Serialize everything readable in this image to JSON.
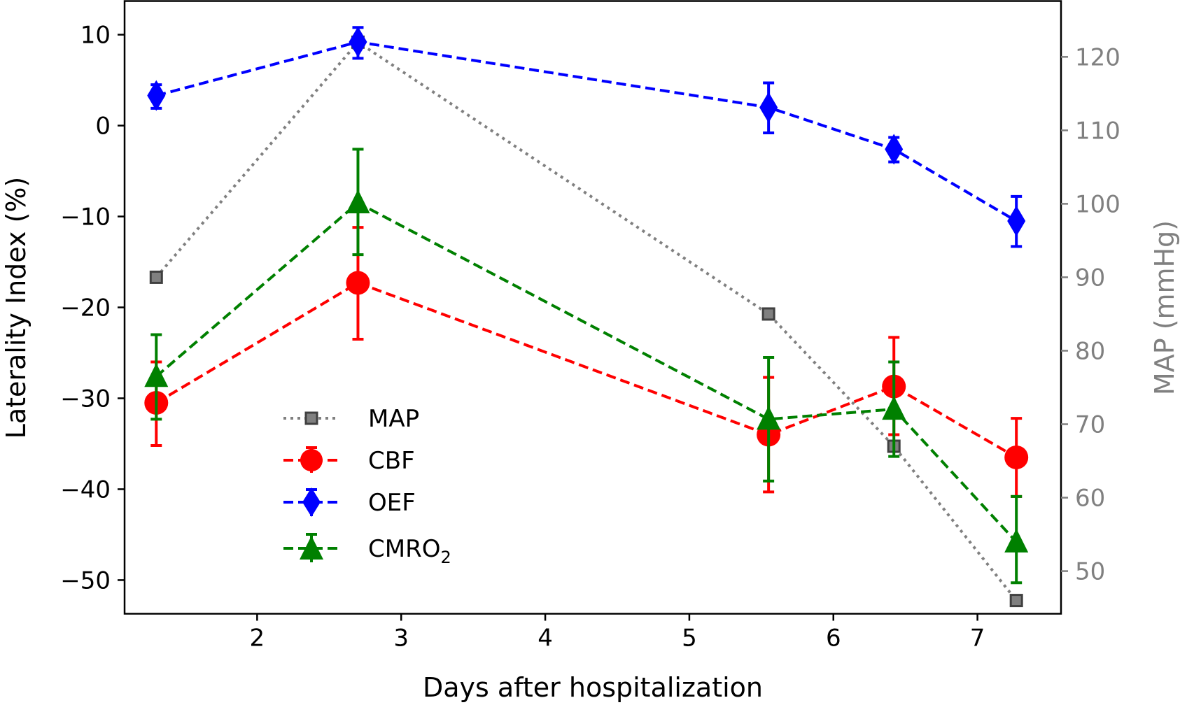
{
  "chart_data": {
    "type": "line",
    "xlabel": "Days after hospitalization",
    "ylabel_left": "Laterality Index (%)",
    "ylabel_right": "MAP (mmHg)",
    "xlim": [
      1.08,
      7.58
    ],
    "ylim_left": [
      -53.7,
      13.7
    ],
    "ylim_right": [
      44.2,
      127.6
    ],
    "x_ticks": [
      2,
      3,
      4,
      5,
      6,
      7
    ],
    "y_ticks_left": [
      10,
      0,
      -10,
      -20,
      -30,
      -40,
      -50
    ],
    "y_ticks_right": [
      120,
      110,
      100,
      90,
      80,
      70,
      60,
      50
    ],
    "x_tick_labels": [
      "2",
      "3",
      "4",
      "5",
      "6",
      "7"
    ],
    "y_tick_labels_left": [
      "10",
      "0",
      "−10",
      "−20",
      "−30",
      "−40",
      "−50"
    ],
    "y_tick_labels_right": [
      "120",
      "110",
      "100",
      "90",
      "80",
      "70",
      "60",
      "50"
    ],
    "grid": false,
    "legend_position": "lower-left",
    "series": [
      {
        "name": "MAP",
        "axis": "right",
        "color": "#808080",
        "line": "dotted",
        "marker": "square",
        "x": [
          1.3,
          2.7,
          5.55,
          6.42,
          7.27
        ],
        "y": [
          90,
          122,
          85,
          67,
          46
        ]
      },
      {
        "name": "CBF",
        "axis": "left",
        "color": "#ff0000",
        "line": "dashed",
        "marker": "circle",
        "x": [
          1.3,
          2.7,
          5.55,
          6.42,
          7.27
        ],
        "y": [
          -30.5,
          -17.3,
          -34,
          -28.7,
          -36.5
        ],
        "err_low": [
          -35.2,
          -23.5,
          -40.3,
          -34,
          -40.8
        ],
        "err_high": [
          -26,
          -11.2,
          -27.7,
          -23.3,
          -32.2
        ]
      },
      {
        "name": "OEF",
        "axis": "left",
        "color": "#0000ff",
        "line": "dashed",
        "marker": "diamond",
        "x": [
          1.3,
          2.7,
          5.55,
          6.42,
          7.27
        ],
        "y": [
          3.3,
          9.2,
          2,
          -2.6,
          -10.5
        ],
        "err_low": [
          1.9,
          7.4,
          -0.8,
          -4,
          -13.3
        ],
        "err_high": [
          4.5,
          10.8,
          4.7,
          -1.3,
          -7.8
        ]
      },
      {
        "name": "CMRO",
        "name_sub": "2",
        "axis": "left",
        "color": "#008000",
        "line": "dashed",
        "marker": "triangle",
        "x": [
          1.3,
          2.7,
          5.55,
          6.42,
          7.27
        ],
        "y": [
          -27.6,
          -8.5,
          -32.3,
          -31.2,
          -45.8
        ],
        "err_low": [
          -32.3,
          -14.2,
          -39.1,
          -36.4,
          -50.3
        ],
        "err_high": [
          -23,
          -2.6,
          -25.5,
          -26,
          -40.8
        ]
      }
    ]
  }
}
